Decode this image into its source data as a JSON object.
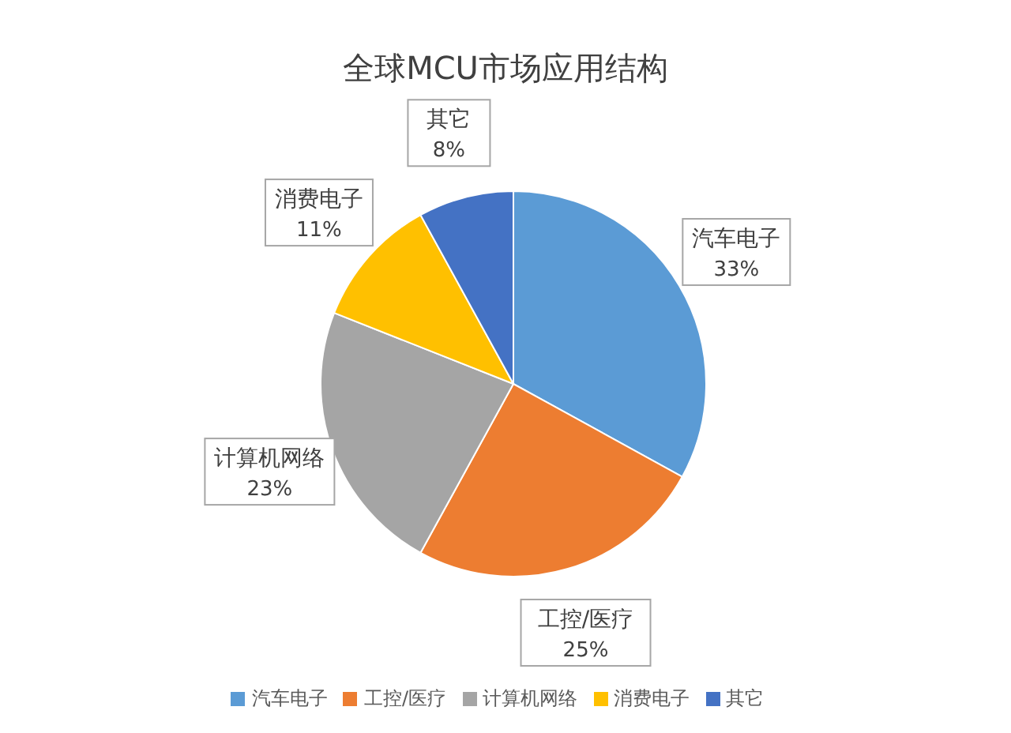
{
  "chart_data": {
    "type": "pie",
    "title": "全球MCU市场应用结构",
    "categories": [
      "汽车电子",
      "工控/医疗",
      "计算机网络",
      "消费电子",
      "其它"
    ],
    "values": [
      33,
      25,
      23,
      11,
      8
    ],
    "value_labels": [
      "33%",
      "25%",
      "23%",
      "11%",
      "8%"
    ],
    "colors": [
      "#5b9bd5",
      "#ed7d31",
      "#a5a5a5",
      "#ffc000",
      "#4472c4"
    ],
    "legend": "bottom"
  }
}
